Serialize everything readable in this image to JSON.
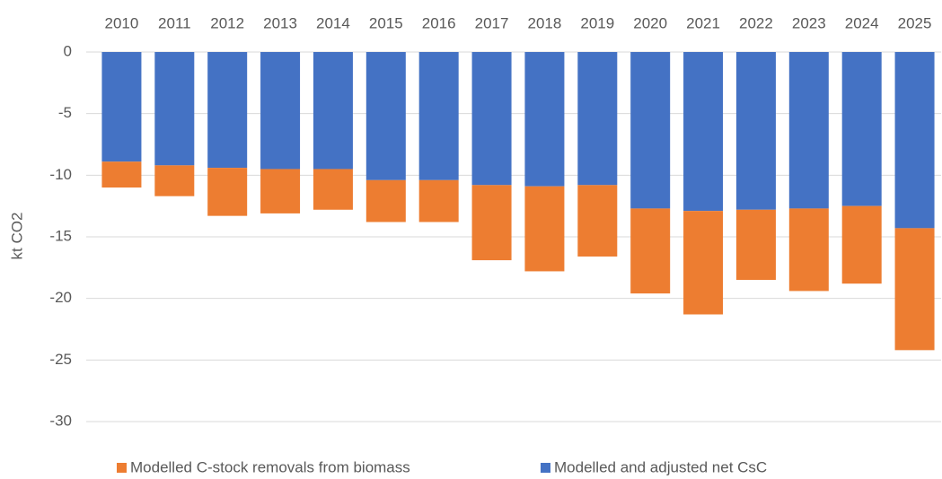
{
  "chart_data": {
    "type": "stacked_bar",
    "y_label": "kt CO2",
    "categories": [
      "2010",
      "2011",
      "2012",
      "2013",
      "2014",
      "2015",
      "2016",
      "2017",
      "2018",
      "2019",
      "2020",
      "2021",
      "2022",
      "2023",
      "2024",
      "2025"
    ],
    "series": [
      {
        "name": "Modelled and adjusted net CsC",
        "color": "#4472c4",
        "values": [
          -8.9,
          -9.2,
          -9.4,
          -9.5,
          -9.5,
          -10.4,
          -10.4,
          -10.8,
          -10.9,
          -10.8,
          -12.7,
          -12.9,
          -12.8,
          -12.7,
          -12.5,
          -14.3
        ]
      },
      {
        "name": "Modelled C-stock removals from biomass",
        "color": "#ed7d31",
        "values": [
          -2.1,
          -2.5,
          -3.9,
          -3.6,
          -3.3,
          -3.4,
          -3.4,
          -6.1,
          -6.9,
          -5.8,
          -6.9,
          -8.4,
          -5.7,
          -6.7,
          -6.3,
          -9.9
        ]
      }
    ],
    "ylim": [
      -30,
      0
    ],
    "yticks": [
      0,
      -5,
      -10,
      -15,
      -20,
      -25,
      -30
    ],
    "grid": true
  }
}
